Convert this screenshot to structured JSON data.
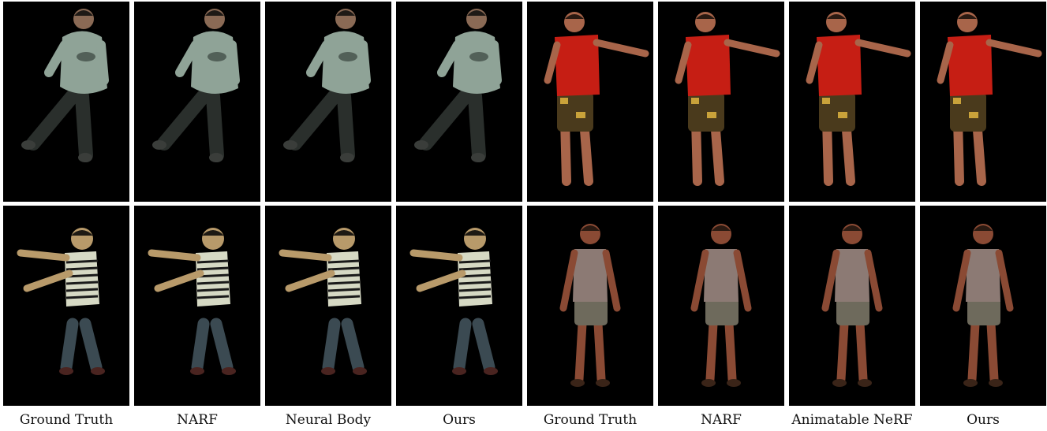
{
  "captions": [
    "Ground Truth",
    "NARF",
    "Neural Body",
    "Ours",
    "Ground Truth",
    "NARF",
    "Animatable NeRF",
    "Ours"
  ],
  "rows": [
    {
      "name": "row-1",
      "subjects": [
        {
          "name": "boy-hoodie",
          "top_color": "#8fa397",
          "bottom_color": "#2a2f2c",
          "skin": "#8a6a55",
          "hair": "#1e1a16"
        },
        {
          "name": "man-red-shirt",
          "top_color": "#c61e14",
          "bottom_color": "#4a3a1c",
          "skin": "#a8654a",
          "hair": "#2a1a12"
        }
      ]
    },
    {
      "name": "row-2",
      "subjects": [
        {
          "name": "boy-striped-shirt",
          "top_color": "#d6d9c4",
          "bottom_color": "#3b4a52",
          "skin": "#b89a6a",
          "hair": "#1e1a14"
        },
        {
          "name": "man-vest",
          "top_color": "#8c7a74",
          "bottom_color": "#6e6a5c",
          "skin": "#8a4a34",
          "hair": "#2a1a12"
        }
      ]
    }
  ]
}
